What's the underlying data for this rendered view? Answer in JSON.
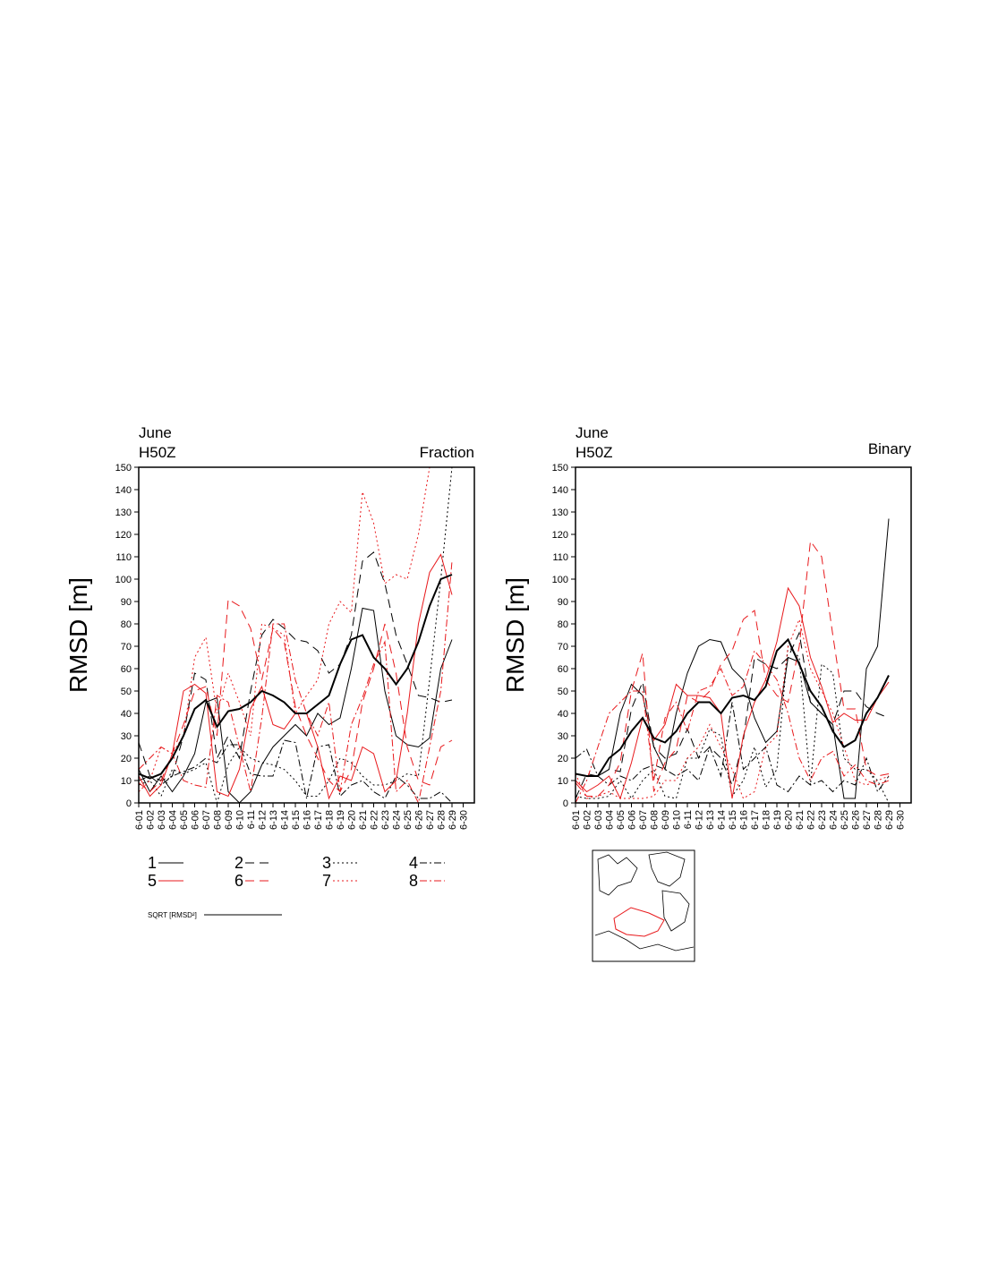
{
  "chart_data": [
    {
      "type": "line",
      "title": "June",
      "subtitle": "H50Z",
      "label": "Fraction",
      "ylabel": "RMSD [m]",
      "categories": [
        "6-01",
        "6-02",
        "6-03",
        "6-04",
        "6-05",
        "6-06",
        "6-07",
        "6-08",
        "6-09",
        "6-10",
        "6-11",
        "6-12",
        "6-13",
        "6-14",
        "6-15",
        "6-16",
        "6-17",
        "6-18",
        "6-19",
        "6-20",
        "6-21",
        "6-22",
        "6-23",
        "6-24",
        "6-25",
        "6-26",
        "6-27",
        "6-28",
        "6-29",
        "6-30"
      ],
      "ylim": [
        0,
        150
      ],
      "yticks": [
        0,
        10,
        20,
        30,
        40,
        50,
        60,
        70,
        80,
        90,
        100,
        110,
        120,
        130,
        140,
        150
      ],
      "series": [
        {
          "name": "1",
          "color": "#000000",
          "dash": "solid",
          "width": 1,
          "values": [
            15,
            5,
            12,
            5,
            12,
            22,
            45,
            47,
            5,
            0,
            5,
            17,
            25,
            30,
            35,
            30,
            40,
            35,
            38,
            60,
            87,
            86,
            50,
            30,
            26,
            25,
            29,
            60,
            73,
            null
          ]
        },
        {
          "name": "2",
          "color": "#000000",
          "dash": "dash",
          "width": 1,
          "values": [
            27,
            12,
            10,
            12,
            30,
            58,
            55,
            20,
            30,
            20,
            50,
            75,
            82,
            78,
            73,
            72,
            68,
            58,
            62,
            75,
            108,
            112,
            98,
            75,
            62,
            48,
            47,
            45,
            46,
            null
          ]
        },
        {
          "name": "3",
          "color": "#000000",
          "dash": "dot",
          "width": 1,
          "values": [
            8,
            10,
            3,
            15,
            13,
            15,
            18,
            0,
            17,
            25,
            20,
            18,
            17,
            15,
            10,
            3,
            3,
            10,
            20,
            18,
            12,
            8,
            8,
            10,
            13,
            12,
            55,
            100,
            150,
            null
          ]
        },
        {
          "name": "4",
          "color": "#000000",
          "dash": "dashdot",
          "width": 1,
          "values": [
            10,
            12,
            8,
            12,
            14,
            16,
            20,
            18,
            26,
            26,
            13,
            12,
            12,
            28,
            27,
            2,
            25,
            26,
            3,
            8,
            10,
            5,
            2,
            12,
            8,
            2,
            2,
            5,
            0,
            null
          ]
        },
        {
          "name": "5",
          "color": "#e8191c",
          "dash": "solid",
          "width": 1,
          "values": [
            12,
            3,
            8,
            22,
            50,
            53,
            49,
            5,
            3,
            15,
            42,
            52,
            35,
            33,
            40,
            40,
            25,
            2,
            12,
            10,
            25,
            22,
            5,
            10,
            40,
            80,
            103,
            111,
            93,
            null
          ]
        },
        {
          "name": "6",
          "color": "#e8191c",
          "dash": "dash",
          "width": 1,
          "values": [
            9,
            5,
            10,
            22,
            35,
            50,
            52,
            30,
            91,
            88,
            78,
            55,
            78,
            72,
            43,
            30,
            20,
            10,
            5,
            15,
            45,
            60,
            80,
            58,
            25,
            10,
            8,
            25,
            28,
            null
          ]
        },
        {
          "name": "7",
          "color": "#e8191c",
          "dash": "dot",
          "width": 1,
          "values": [
            5,
            10,
            25,
            22,
            30,
            65,
            74,
            40,
            58,
            45,
            30,
            80,
            78,
            75,
            40,
            48,
            55,
            80,
            90,
            85,
            139,
            125,
            98,
            102,
            100,
            120,
            150,
            null,
            null,
            null
          ]
        },
        {
          "name": "8",
          "color": "#e8191c",
          "dash": "dashdot",
          "width": 1,
          "values": [
            15,
            20,
            25,
            22,
            10,
            8,
            7,
            48,
            45,
            25,
            5,
            38,
            80,
            80,
            55,
            40,
            30,
            45,
            5,
            35,
            47,
            62,
            72,
            5,
            10,
            0,
            25,
            50,
            108,
            null
          ]
        },
        {
          "name": "SQRT [RMSD²]",
          "color": "#000000",
          "dash": "solid",
          "width": 2,
          "values": [
            13,
            11,
            13,
            20,
            30,
            42,
            46,
            34,
            41,
            42,
            45,
            50,
            48,
            45,
            40,
            40,
            44,
            48,
            62,
            73,
            75,
            65,
            60,
            53,
            60,
            72,
            88,
            100,
            102,
            null
          ]
        }
      ]
    },
    {
      "type": "line",
      "title": "June",
      "subtitle": "H50Z",
      "label": "Binary",
      "ylabel": "RMSD [m]",
      "categories": [
        "6-01",
        "6-02",
        "6-03",
        "6-04",
        "6-05",
        "6-06",
        "6-07",
        "6-08",
        "6-09",
        "6-10",
        "6-11",
        "6-12",
        "6-13",
        "6-14",
        "6-15",
        "6-16",
        "6-17",
        "6-18",
        "6-19",
        "6-20",
        "6-21",
        "6-22",
        "6-23",
        "6-24",
        "6-25",
        "6-26",
        "6-27",
        "6-28",
        "6-29",
        "6-30"
      ],
      "ylim": [
        0,
        150
      ],
      "yticks": [
        0,
        10,
        20,
        30,
        40,
        50,
        60,
        70,
        80,
        90,
        100,
        110,
        120,
        130,
        140,
        150
      ],
      "series": [
        {
          "color": "#000000",
          "dash": "solid",
          "width": 1,
          "values": [
            13,
            12,
            12,
            15,
            40,
            53,
            48,
            25,
            15,
            40,
            58,
            70,
            73,
            72,
            60,
            55,
            38,
            27,
            32,
            65,
            63,
            45,
            40,
            35,
            2,
            2,
            60,
            70,
            127,
            null
          ]
        },
        {
          "color": "#000000",
          "dash": "dash",
          "width": 1,
          "values": [
            2,
            13,
            12,
            15,
            14,
            42,
            54,
            25,
            20,
            22,
            33,
            20,
            25,
            20,
            8,
            28,
            65,
            62,
            60,
            65,
            76,
            45,
            40,
            35,
            50,
            50,
            43,
            40,
            38,
            null
          ]
        },
        {
          "color": "#000000",
          "dash": "dot",
          "width": 1,
          "values": [
            3,
            2,
            2,
            3,
            10,
            2,
            10,
            15,
            3,
            2,
            20,
            20,
            33,
            30,
            3,
            10,
            25,
            7,
            15,
            70,
            65,
            8,
            62,
            58,
            20,
            15,
            15,
            10,
            0,
            null
          ]
        },
        {
          "color": "#000000",
          "dash": "dashdot",
          "width": 1,
          "values": [
            20,
            24,
            12,
            8,
            12,
            10,
            15,
            17,
            15,
            12,
            15,
            10,
            25,
            12,
            45,
            15,
            20,
            25,
            8,
            5,
            12,
            8,
            10,
            5,
            10,
            8,
            20,
            5,
            12,
            null
          ]
        },
        {
          "color": "#e8191c",
          "dash": "solid",
          "width": 1,
          "values": [
            10,
            5,
            8,
            12,
            2,
            18,
            38,
            28,
            35,
            53,
            48,
            48,
            47,
            40,
            2,
            30,
            45,
            55,
            72,
            96,
            88,
            65,
            52,
            36,
            40,
            37,
            37,
            47,
            54,
            null
          ]
        },
        {
          "color": "#e8191c",
          "dash": "dash",
          "width": 1,
          "values": [
            9,
            3,
            3,
            8,
            18,
            50,
            67,
            5,
            18,
            24,
            48,
            45,
            50,
            62,
            68,
            82,
            86,
            55,
            48,
            45,
            70,
            117,
            110,
            75,
            42,
            42,
            15,
            12,
            13,
            null
          ]
        },
        {
          "color": "#e8191c",
          "dash": "dot",
          "width": 1,
          "values": [
            13,
            2,
            3,
            5,
            2,
            2,
            2,
            3,
            10,
            10,
            20,
            25,
            35,
            25,
            15,
            2,
            5,
            25,
            30,
            70,
            82,
            60,
            50,
            40,
            25,
            10,
            8,
            10,
            12,
            null
          ]
        },
        {
          "color": "#e8191c",
          "dash": "dashdot",
          "width": 1,
          "values": [
            0,
            10,
            25,
            40,
            45,
            50,
            50,
            10,
            38,
            45,
            32,
            50,
            52,
            60,
            48,
            52,
            68,
            62,
            55,
            40,
            20,
            10,
            20,
            23,
            12,
            17,
            10,
            8,
            10,
            null
          ]
        },
        {
          "color": "#000000",
          "dash": "solid",
          "width": 2,
          "values": [
            13,
            12,
            12,
            20,
            24,
            32,
            38,
            29,
            27,
            32,
            40,
            45,
            45,
            40,
            47,
            48,
            46,
            52,
            68,
            73,
            62,
            50,
            43,
            32,
            25,
            28,
            40,
            47,
            57,
            null
          ]
        }
      ]
    }
  ]
}
